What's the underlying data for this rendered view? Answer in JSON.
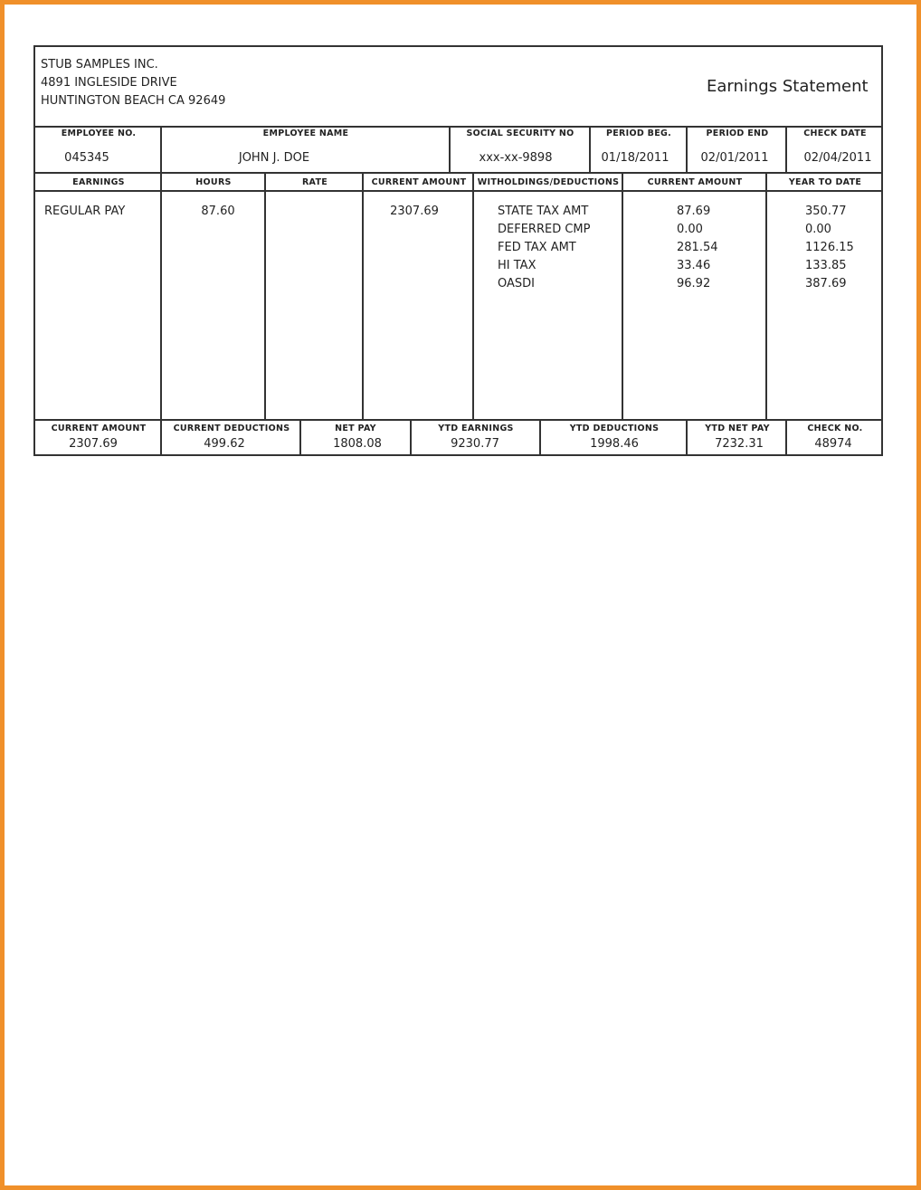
{
  "company": {
    "name": "STUB SAMPLES INC.",
    "address1": "4891 INGLESIDE DRIVE",
    "address2": "HUNTINGTON BEACH CA 92649"
  },
  "title": "Earnings Statement",
  "info": {
    "labels": [
      "EMPLOYEE NO.",
      "EMPLOYEE NAME",
      "SOCIAL SECURITY NO",
      "PERIOD BEG.",
      "PERIOD END",
      "CHECK DATE"
    ],
    "values": [
      "045345",
      "JOHN J. DOE",
      "xxx-xx-9898",
      "01/18/2011",
      "02/01/2011",
      "02/04/2011"
    ]
  },
  "earnings": {
    "headers": [
      "EARNINGS",
      "HOURS",
      "RATE",
      "CURRENT AMOUNT",
      "WITHOLDINGS/DEDUCTIONS",
      "CURRENT AMOUNT",
      "YEAR TO DATE"
    ],
    "rows": [
      {
        "type": "REGULAR PAY",
        "hours": "87.60",
        "rate": "",
        "amount": "2307.69"
      }
    ],
    "deductions": [
      {
        "name": "STATE TAX AMT",
        "current": "87.69",
        "ytd": "350.77"
      },
      {
        "name": "DEFERRED CMP",
        "current": "0.00",
        "ytd": "0.00"
      },
      {
        "name": "FED TAX AMT",
        "current": "281.54",
        "ytd": "1126.15"
      },
      {
        "name": "HI TAX",
        "current": "33.46",
        "ytd": "133.85"
      },
      {
        "name": "OASDI",
        "current": "96.92",
        "ytd": "387.69"
      }
    ]
  },
  "summary": {
    "labels": [
      "CURRENT AMOUNT",
      "CURRENT DEDUCTIONS",
      "NET PAY",
      "YTD EARNINGS",
      "YTD DEDUCTIONS",
      "YTD NET PAY",
      "CHECK NO."
    ],
    "values": [
      "2307.69",
      "499.62",
      "1808.08",
      "9230.77",
      "1998.46",
      "7232.31",
      "48974"
    ]
  },
  "colors": {
    "page_border": "#f0902a",
    "lines": "#333333"
  }
}
